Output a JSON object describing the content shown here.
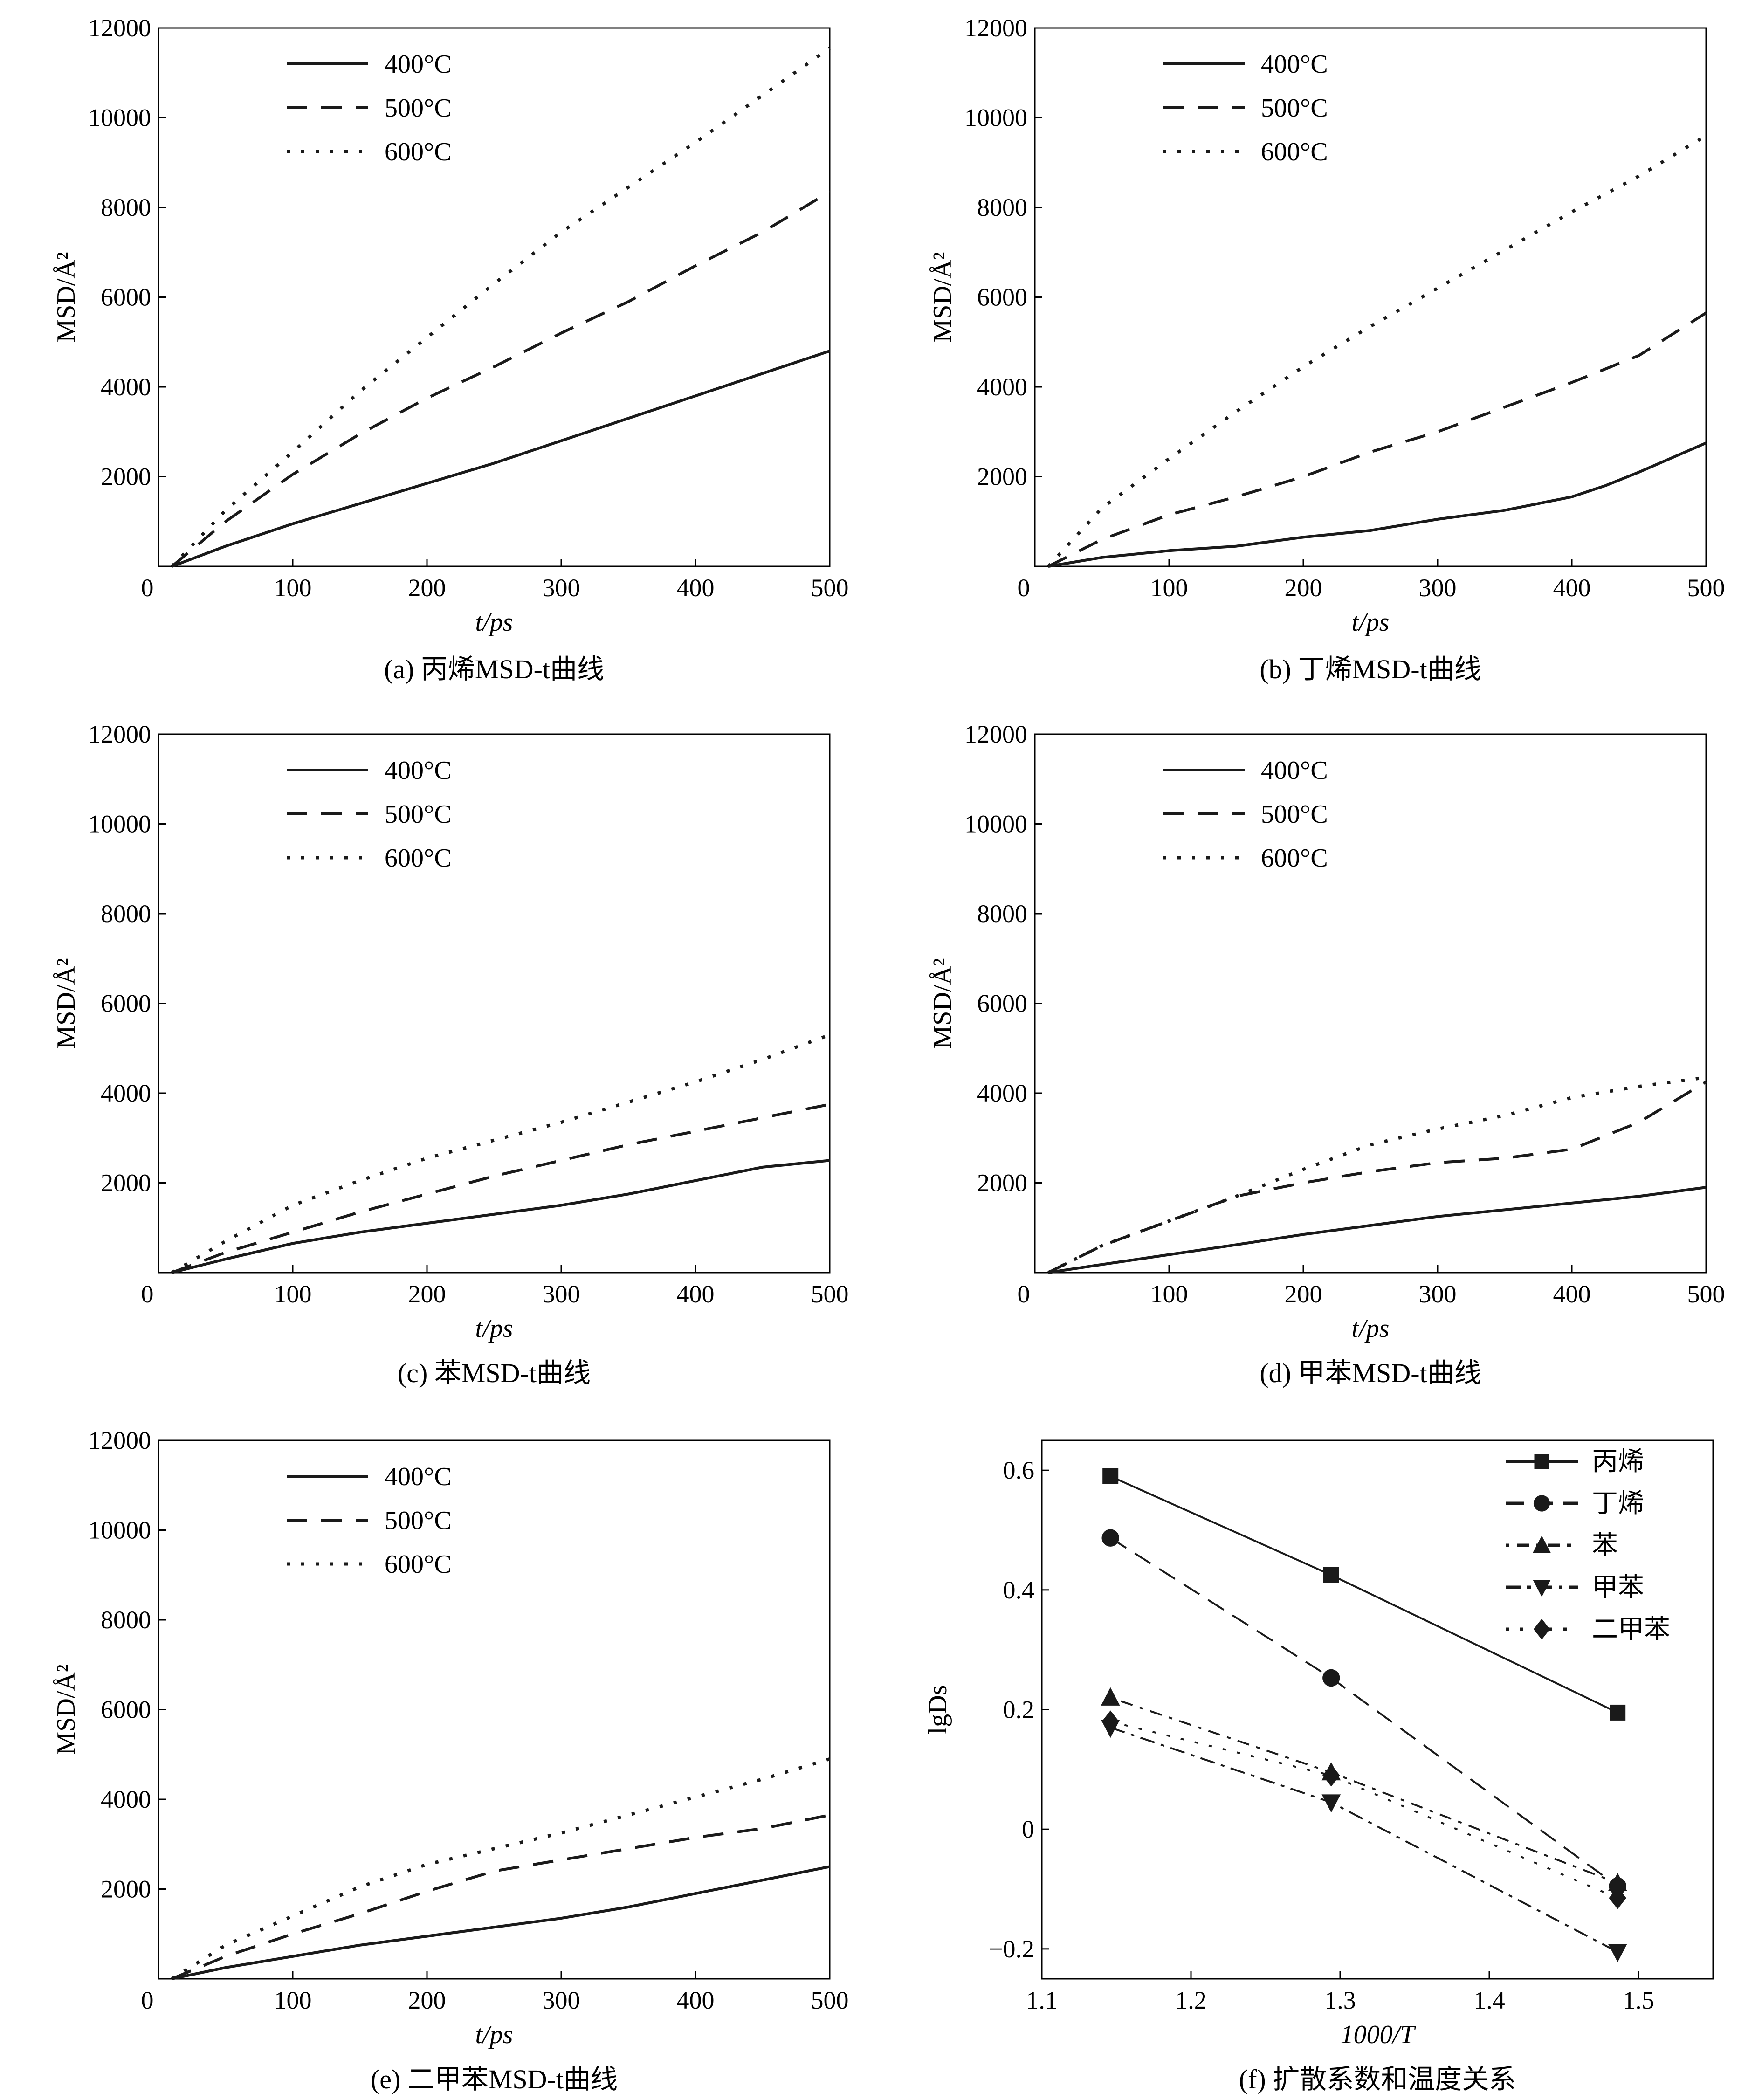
{
  "colors": {
    "line": "#1a1a1a",
    "background": "#ffffff",
    "text": "#000000"
  },
  "chart_data": [
    {
      "type": "line",
      "caption": "(a) 丙烯MSD-t曲线",
      "xlabel": "t/ps",
      "ylabel": "MSD/Å²",
      "xlim": [
        0,
        500
      ],
      "ylim": [
        0,
        12000
      ],
      "xticks": [
        0,
        100,
        200,
        300,
        400,
        500
      ],
      "yticks": [
        2000,
        4000,
        6000,
        8000,
        10000,
        12000
      ],
      "origin_label": "0",
      "legend_position": "top-left",
      "series": [
        {
          "name": "400°C",
          "style": "solid",
          "x": [
            10,
            50,
            100,
            150,
            200,
            250,
            300,
            350,
            400,
            450,
            500
          ],
          "y": [
            0,
            450,
            950,
            1400,
            1850,
            2300,
            2800,
            3300,
            3800,
            4300,
            4800
          ]
        },
        {
          "name": "500°C",
          "style": "dashed",
          "x": [
            10,
            50,
            100,
            150,
            200,
            250,
            300,
            350,
            400,
            450,
            500
          ],
          "y": [
            0,
            1000,
            2050,
            2950,
            3750,
            4450,
            5200,
            5900,
            6700,
            7450,
            8350
          ]
        },
        {
          "name": "600°C",
          "style": "dotted",
          "x": [
            10,
            50,
            100,
            150,
            200,
            250,
            300,
            350,
            400,
            450,
            500
          ],
          "y": [
            0,
            1250,
            2550,
            3900,
            5100,
            6300,
            7450,
            8450,
            9450,
            10500,
            11550
          ]
        }
      ]
    },
    {
      "type": "line",
      "caption": "(b) 丁烯MSD-t曲线",
      "xlabel": "t/ps",
      "ylabel": "MSD/Å²",
      "xlim": [
        0,
        500
      ],
      "ylim": [
        0,
        12000
      ],
      "xticks": [
        0,
        100,
        200,
        300,
        400,
        500
      ],
      "yticks": [
        2000,
        4000,
        6000,
        8000,
        10000,
        12000
      ],
      "origin_label": "0",
      "legend_position": "top-left",
      "series": [
        {
          "name": "400°C",
          "style": "solid",
          "x": [
            10,
            50,
            100,
            150,
            200,
            250,
            300,
            350,
            400,
            425,
            450,
            500
          ],
          "y": [
            0,
            200,
            350,
            450,
            650,
            800,
            1050,
            1250,
            1550,
            1800,
            2100,
            2750
          ]
        },
        {
          "name": "500°C",
          "style": "dashed",
          "x": [
            10,
            50,
            100,
            150,
            200,
            250,
            300,
            350,
            400,
            450,
            500
          ],
          "y": [
            0,
            600,
            1150,
            1550,
            2000,
            2550,
            3000,
            3550,
            4100,
            4700,
            5650
          ]
        },
        {
          "name": "600°C",
          "style": "dotted",
          "x": [
            10,
            50,
            100,
            150,
            200,
            250,
            300,
            350,
            400,
            450,
            500
          ],
          "y": [
            0,
            1300,
            2400,
            3450,
            4450,
            5350,
            6200,
            7050,
            7900,
            8700,
            9600
          ]
        }
      ]
    },
    {
      "type": "line",
      "caption": "(c) 苯MSD-t曲线",
      "xlabel": "t/ps",
      "ylabel": "MSD/Å²",
      "xlim": [
        0,
        500
      ],
      "ylim": [
        0,
        12000
      ],
      "xticks": [
        0,
        100,
        200,
        300,
        400,
        500
      ],
      "yticks": [
        2000,
        4000,
        6000,
        8000,
        10000,
        12000
      ],
      "origin_label": "0",
      "legend_position": "top-left",
      "series": [
        {
          "name": "400°C",
          "style": "solid",
          "x": [
            10,
            50,
            100,
            150,
            200,
            250,
            300,
            350,
            400,
            450,
            500
          ],
          "y": [
            0,
            300,
            650,
            900,
            1100,
            1300,
            1500,
            1750,
            2050,
            2350,
            2500
          ]
        },
        {
          "name": "500°C",
          "style": "dashed",
          "x": [
            10,
            50,
            100,
            150,
            200,
            250,
            300,
            350,
            400,
            450,
            500
          ],
          "y": [
            0,
            450,
            900,
            1350,
            1750,
            2150,
            2500,
            2850,
            3150,
            3450,
            3750
          ]
        },
        {
          "name": "600°C",
          "style": "dotted",
          "x": [
            10,
            50,
            100,
            150,
            200,
            250,
            300,
            350,
            400,
            450,
            500
          ],
          "y": [
            0,
            700,
            1500,
            2050,
            2550,
            2950,
            3350,
            3800,
            4250,
            4750,
            5300
          ]
        }
      ]
    },
    {
      "type": "line",
      "caption": "(d) 甲苯MSD-t曲线",
      "xlabel": "t/ps",
      "ylabel": "MSD/Å²",
      "xlim": [
        0,
        500
      ],
      "ylim": [
        0,
        12000
      ],
      "xticks": [
        0,
        100,
        200,
        300,
        400,
        500
      ],
      "yticks": [
        2000,
        4000,
        6000,
        8000,
        10000,
        12000
      ],
      "origin_label": "0",
      "legend_position": "top-left",
      "series": [
        {
          "name": "400°C",
          "style": "solid",
          "x": [
            10,
            50,
            100,
            150,
            200,
            250,
            300,
            350,
            400,
            450,
            500
          ],
          "y": [
            0,
            180,
            400,
            620,
            850,
            1050,
            1250,
            1400,
            1550,
            1700,
            1900
          ]
        },
        {
          "name": "500°C",
          "style": "dashed",
          "x": [
            10,
            50,
            100,
            150,
            200,
            250,
            300,
            350,
            400,
            450,
            500
          ],
          "y": [
            0,
            600,
            1150,
            1700,
            2000,
            2250,
            2450,
            2550,
            2750,
            3350,
            4250
          ]
        },
        {
          "name": "600°C",
          "style": "dotted",
          "x": [
            10,
            50,
            100,
            150,
            200,
            250,
            300,
            350,
            400,
            450,
            500
          ],
          "y": [
            0,
            600,
            1150,
            1700,
            2300,
            2850,
            3200,
            3500,
            3900,
            4150,
            4350
          ]
        }
      ]
    },
    {
      "type": "line",
      "caption": "(e) 二甲苯MSD-t曲线",
      "xlabel": "t/ps",
      "ylabel": "MSD/Å²",
      "xlim": [
        0,
        500
      ],
      "ylim": [
        0,
        12000
      ],
      "xticks": [
        0,
        100,
        200,
        300,
        400,
        500
      ],
      "yticks": [
        2000,
        4000,
        6000,
        8000,
        10000,
        12000
      ],
      "origin_label": "0",
      "legend_position": "top-left",
      "series": [
        {
          "name": "400°C",
          "style": "solid",
          "x": [
            10,
            50,
            100,
            150,
            200,
            250,
            300,
            350,
            400,
            450,
            500
          ],
          "y": [
            0,
            250,
            500,
            750,
            950,
            1150,
            1350,
            1600,
            1900,
            2200,
            2500
          ]
        },
        {
          "name": "500°C",
          "style": "dashed",
          "x": [
            10,
            50,
            100,
            150,
            200,
            250,
            300,
            350,
            400,
            450,
            500
          ],
          "y": [
            0,
            500,
            1000,
            1450,
            1950,
            2400,
            2650,
            2900,
            3150,
            3350,
            3650
          ]
        },
        {
          "name": "600°C",
          "style": "dotted",
          "x": [
            10,
            50,
            100,
            150,
            200,
            250,
            300,
            350,
            400,
            450,
            500
          ],
          "y": [
            0,
            750,
            1400,
            2050,
            2550,
            2900,
            3250,
            3650,
            4050,
            4450,
            4900
          ]
        }
      ]
    },
    {
      "type": "line",
      "caption": "(f) 扩散系数和温度关系",
      "xlabel": "1000/T",
      "ylabel": "lgDs",
      "xlim": [
        1.1,
        1.55
      ],
      "ylim": [
        -0.25,
        0.65
      ],
      "xticks": [
        1.1,
        1.2,
        1.3,
        1.4,
        1.5
      ],
      "xticklabels": [
        "1.1",
        "1.2",
        "1.3",
        "1.4",
        "1.5"
      ],
      "yticks": [
        -0.2,
        0,
        0.2,
        0.4,
        0.6
      ],
      "yticklabels": [
        "−0.2",
        "0",
        "0.2",
        "0.4",
        "0.6"
      ],
      "legend_position": "top-right",
      "series": [
        {
          "name": "丙烯",
          "style": "solid",
          "marker": "square",
          "x": [
            1.146,
            1.294,
            1.486
          ],
          "y": [
            0.59,
            0.425,
            0.195
          ]
        },
        {
          "name": "丁烯",
          "style": "longdash",
          "marker": "circle",
          "x": [
            1.146,
            1.294,
            1.486
          ],
          "y": [
            0.487,
            0.253,
            -0.095
          ]
        },
        {
          "name": "苯",
          "style": "dotdash",
          "marker": "triangle-up",
          "x": [
            1.146,
            1.294,
            1.486
          ],
          "y": [
            0.22,
            0.095,
            -0.09
          ]
        },
        {
          "name": "甲苯",
          "style": "dashdot",
          "marker": "triangle-down",
          "x": [
            1.146,
            1.294,
            1.486
          ],
          "y": [
            0.17,
            0.045,
            -0.205
          ]
        },
        {
          "name": "二甲苯",
          "style": "dotted",
          "marker": "diamond",
          "x": [
            1.146,
            1.294,
            1.486
          ],
          "y": [
            0.18,
            0.09,
            -0.115
          ]
        }
      ]
    }
  ]
}
